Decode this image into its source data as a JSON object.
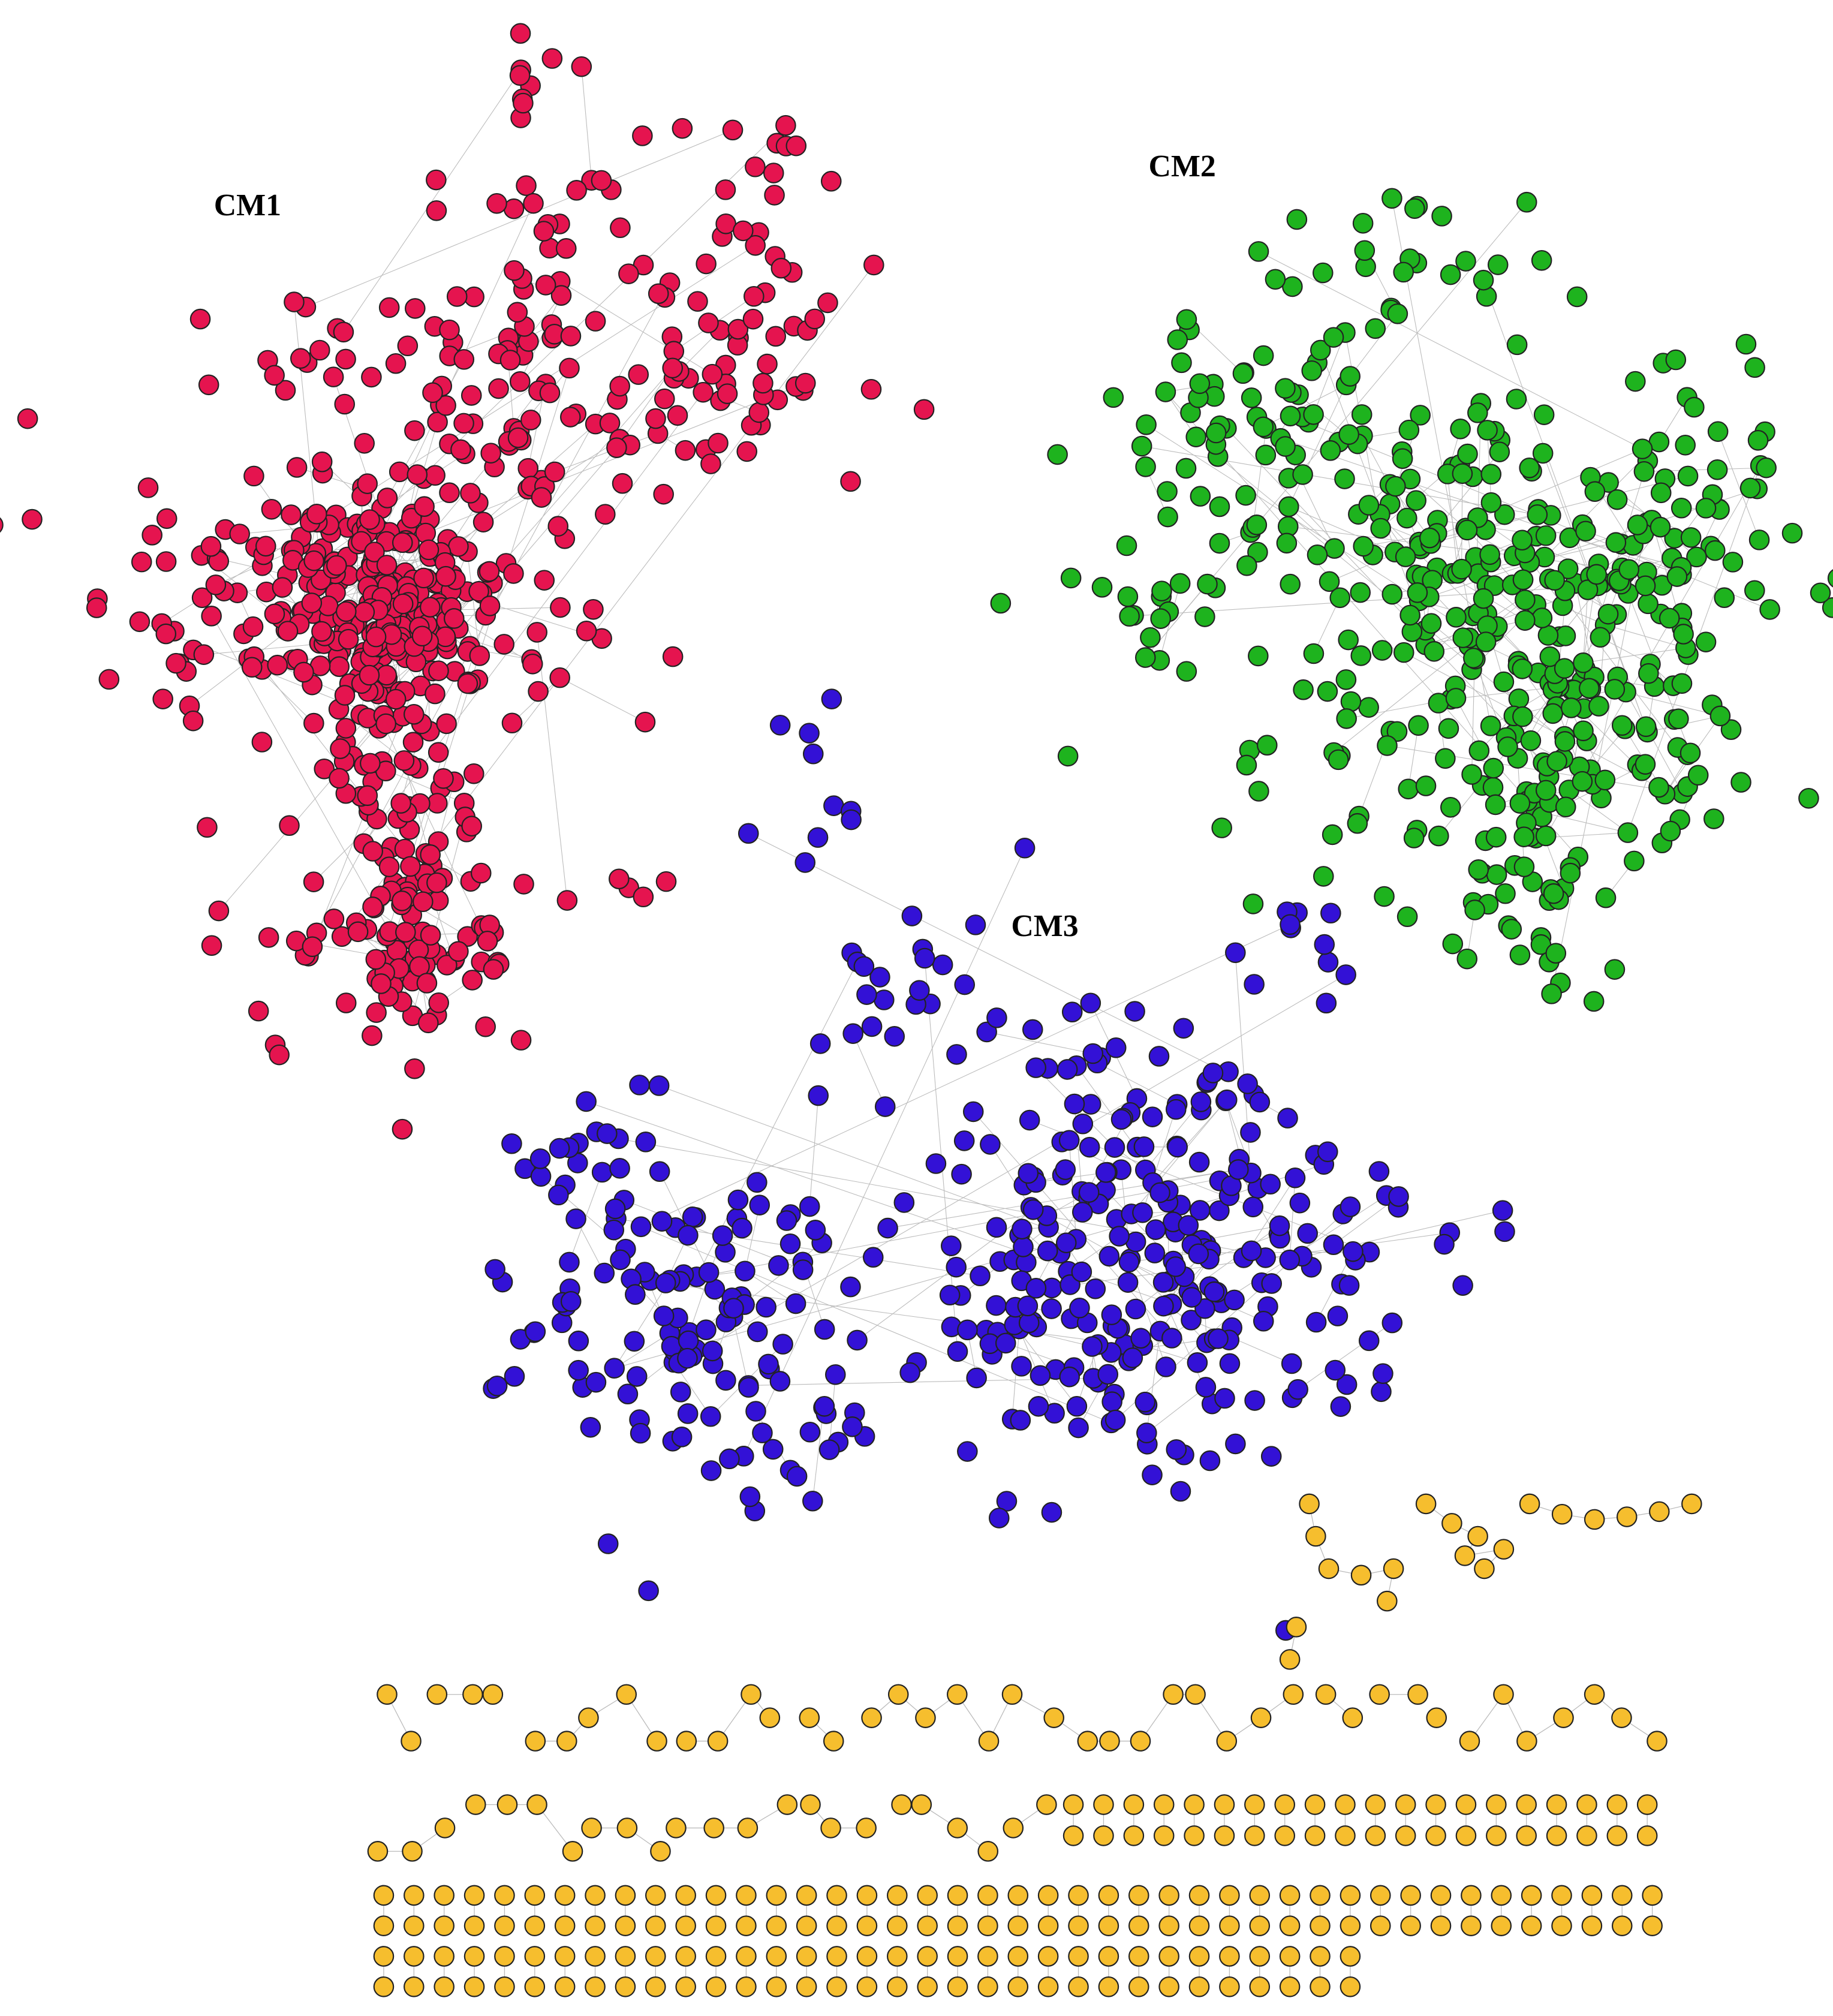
{
  "labels": {
    "cm1": "CM1",
    "cm2": "CM2",
    "cm3": "CM3"
  }
}
